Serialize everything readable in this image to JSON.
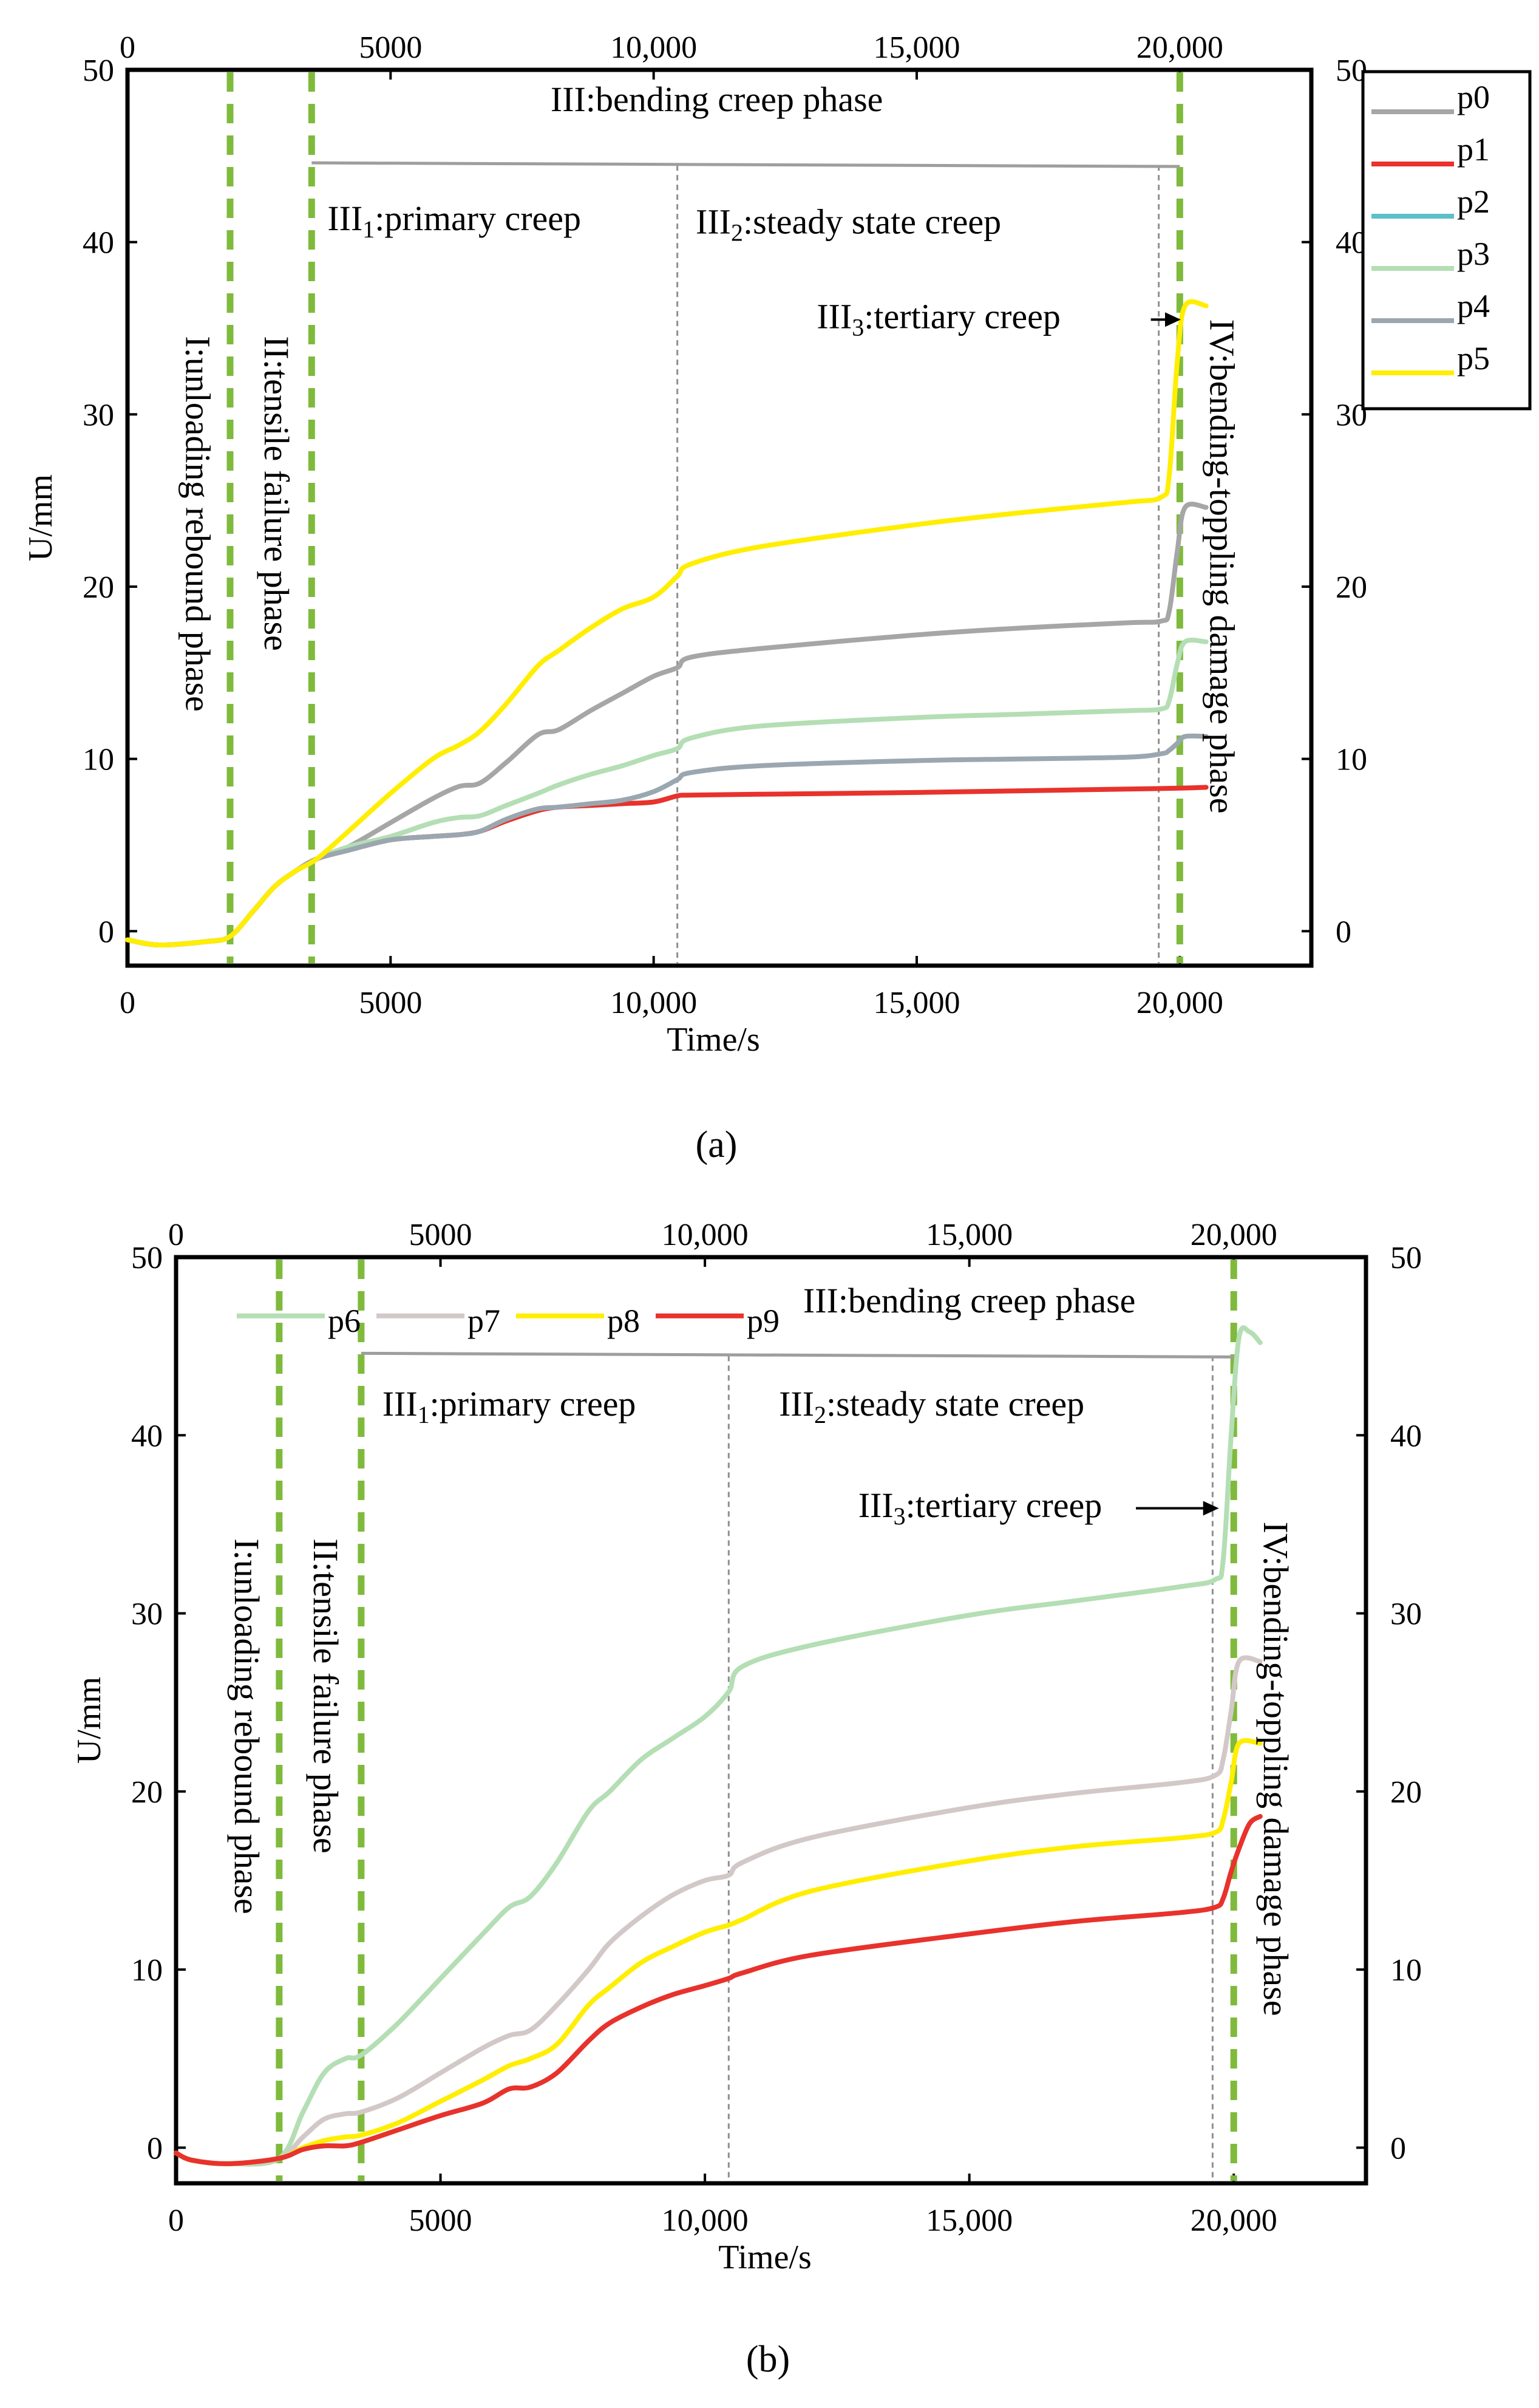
{
  "chart_data": [
    {
      "panel_label": "(a)",
      "type": "line",
      "xlabel": "Time/s",
      "ylabel": "U/mm",
      "xlim": [
        0,
        22500
      ],
      "ylim": [
        -2,
        50
      ],
      "x_ticks": [
        0,
        5000,
        10000,
        15000,
        20000
      ],
      "x_tick_labels": [
        "0",
        "5000",
        "10,000",
        "15,000",
        "20,000"
      ],
      "y_ticks": [
        0,
        10,
        20,
        30,
        40,
        50
      ],
      "y_tick_labels": [
        "0",
        "10",
        "20",
        "30",
        "40",
        "50"
      ],
      "legend_position": "right-outside",
      "legend_style": "box",
      "phase_boundaries": [
        1950,
        3500,
        20000
      ],
      "sub_boundaries": [
        10450,
        19600
      ],
      "bracket": {
        "y": 44.6,
        "x_start": 3500,
        "x_end": 20000
      },
      "phase_labels": {
        "phase_1": "I:unloading rebound phase",
        "phase_2": "II:tensile failure phase",
        "phase_3": "III:bending creep phase",
        "phase_4": "IV:bending-toppling damage phase"
      },
      "sub_labels": [
        {
          "prefix": "III",
          "sub": "1",
          "text": ":primary creep"
        },
        {
          "prefix": "III",
          "sub": "2",
          "text": ":steady state creep"
        },
        {
          "prefix": "III",
          "sub": "3",
          "text": ":tertiary creep"
        }
      ],
      "series": [
        {
          "name": "p0",
          "color": "#a6a6a6",
          "x": [
            0,
            600,
            1500,
            1950,
            2400,
            2800,
            3200,
            3600,
            4200,
            5000,
            5800,
            6300,
            6700,
            7200,
            7800,
            8200,
            8800,
            9400,
            10000,
            10450,
            10700,
            12000,
            15000,
            17000,
            19000,
            19650,
            19800,
            19950,
            20100,
            20500
          ],
          "y": [
            -0.5,
            -0.8,
            -0.6,
            -0.3,
            1.2,
            2.6,
            3.5,
            4.2,
            4.9,
            6.3,
            7.7,
            8.4,
            8.6,
            9.8,
            11.4,
            11.7,
            12.8,
            13.8,
            14.8,
            15.3,
            15.9,
            16.4,
            17.2,
            17.6,
            17.9,
            18.0,
            18.6,
            22.0,
            24.6,
            24.6
          ]
        },
        {
          "name": "p1",
          "color": "#e8322c",
          "x": [
            0,
            600,
            1500,
            1950,
            2400,
            2800,
            3200,
            3600,
            4200,
            5000,
            5800,
            6300,
            6700,
            7200,
            7800,
            8200,
            8800,
            9400,
            10000,
            10450,
            10700,
            12000,
            15000,
            17000,
            19000,
            20000,
            20500
          ],
          "y": [
            -0.5,
            -0.8,
            -0.6,
            -0.3,
            1.2,
            2.6,
            3.5,
            4.2,
            4.7,
            5.3,
            5.5,
            5.6,
            5.8,
            6.4,
            7.0,
            7.2,
            7.3,
            7.4,
            7.5,
            7.85,
            7.9,
            7.95,
            8.05,
            8.15,
            8.25,
            8.3,
            8.35
          ]
        },
        {
          "name": "p2",
          "color": "#5bc0c8",
          "x": [],
          "y": []
        },
        {
          "name": "p3",
          "color": "#b4deb4",
          "x": [
            0,
            600,
            1500,
            1950,
            2400,
            2800,
            3200,
            3600,
            4200,
            5000,
            5800,
            6300,
            6700,
            7200,
            7800,
            8200,
            8800,
            9400,
            10000,
            10450,
            10700,
            12000,
            15000,
            17000,
            19000,
            19650,
            19800,
            19950,
            20100,
            20500
          ],
          "y": [
            -0.5,
            -0.8,
            -0.6,
            -0.3,
            1.2,
            2.6,
            3.5,
            4.2,
            4.9,
            5.5,
            6.3,
            6.6,
            6.7,
            7.3,
            8.0,
            8.5,
            9.1,
            9.6,
            10.2,
            10.6,
            11.2,
            11.9,
            12.4,
            12.6,
            12.8,
            12.9,
            13.4,
            15.5,
            16.8,
            16.8
          ]
        },
        {
          "name": "p4",
          "color": "#9ba7b0",
          "x": [
            0,
            600,
            1500,
            1950,
            2400,
            2800,
            3200,
            3600,
            4200,
            5000,
            5800,
            6300,
            6700,
            7200,
            7800,
            8200,
            8800,
            9400,
            10000,
            10450,
            10700,
            12000,
            15000,
            17000,
            19000,
            19650,
            19800,
            19950,
            20100,
            20500
          ],
          "y": [
            -0.5,
            -0.8,
            -0.6,
            -0.3,
            1.2,
            2.6,
            3.5,
            4.2,
            4.7,
            5.3,
            5.5,
            5.6,
            5.8,
            6.5,
            7.1,
            7.2,
            7.4,
            7.6,
            8.1,
            8.8,
            9.2,
            9.6,
            9.9,
            10.0,
            10.1,
            10.3,
            10.5,
            10.9,
            11.3,
            11.3
          ]
        },
        {
          "name": "p5",
          "color": "#ffee00",
          "x": [
            0,
            600,
            1500,
            1950,
            2400,
            2800,
            3200,
            3600,
            4200,
            5000,
            5800,
            6300,
            6700,
            7200,
            7800,
            8200,
            8800,
            9400,
            10000,
            10450,
            10700,
            12000,
            15000,
            17000,
            19000,
            19650,
            19800,
            19950,
            20100,
            20500
          ],
          "y": [
            -0.5,
            -0.8,
            -0.6,
            -0.3,
            1.2,
            2.6,
            3.5,
            4.2,
            5.8,
            8.0,
            10.0,
            10.8,
            11.6,
            13.2,
            15.4,
            16.3,
            17.6,
            18.7,
            19.4,
            20.6,
            21.3,
            22.3,
            23.6,
            24.3,
            24.9,
            25.2,
            26.5,
            33.0,
            36.3,
            36.3
          ]
        }
      ]
    },
    {
      "panel_label": "(b)",
      "type": "line",
      "xlabel": "Time/s",
      "ylabel": "U/mm",
      "xlim": [
        0,
        22500
      ],
      "ylim": [
        -2,
        50
      ],
      "x_ticks": [
        0,
        5000,
        10000,
        15000,
        20000
      ],
      "x_tick_labels": [
        "0",
        "5000",
        "10,000",
        "15,000",
        "20,000"
      ],
      "y_ticks": [
        0,
        10,
        20,
        30,
        40,
        50
      ],
      "y_tick_labels": [
        "0",
        "10",
        "20",
        "30",
        "40",
        "50"
      ],
      "legend_position": "top-inline",
      "legend_style": "inline",
      "phase_boundaries": [
        1950,
        3500,
        20000
      ],
      "sub_boundaries": [
        10450,
        19600
      ],
      "bracket": {
        "y": 44.6,
        "x_start": 3500,
        "x_end": 20000
      },
      "phase_labels": {
        "phase_1": "I:unloading rebound phase",
        "phase_2": "II:tensile failure phase",
        "phase_3": "III:bending creep phase",
        "phase_4": "IV:bending-toppling damage phase"
      },
      "sub_labels": [
        {
          "prefix": "III",
          "sub": "1",
          "text": ":primary creep"
        },
        {
          "prefix": "III",
          "sub": "2",
          "text": ":steady state creep"
        },
        {
          "prefix": "III",
          "sub": "3",
          "text": ":tertiary creep"
        }
      ],
      "series": [
        {
          "name": "p6",
          "color": "#b4deb4",
          "x": [
            0,
            300,
            1000,
            1950,
            2400,
            2800,
            3200,
            3500,
            4200,
            5000,
            5800,
            6300,
            6700,
            7200,
            7800,
            8200,
            8800,
            9400,
            10000,
            10450,
            10700,
            12000,
            15000,
            17000,
            19000,
            19650,
            19800,
            19950,
            20100,
            20300,
            20500
          ],
          "y": [
            -0.3,
            -0.7,
            -0.9,
            -0.6,
            2.0,
            4.2,
            5.0,
            5.2,
            7.0,
            9.5,
            12.0,
            13.5,
            14.1,
            16.0,
            18.9,
            20.0,
            21.8,
            23.0,
            24.2,
            25.6,
            27.0,
            28.2,
            29.9,
            30.7,
            31.5,
            31.9,
            33.0,
            40.0,
            45.5,
            45.8,
            45.2
          ]
        },
        {
          "name": "p7",
          "color": "#d3c8c8",
          "x": [
            0,
            300,
            1000,
            1950,
            2400,
            2800,
            3200,
            3500,
            4200,
            5000,
            5800,
            6300,
            6700,
            7200,
            7800,
            8200,
            8800,
            9400,
            10000,
            10450,
            10700,
            12000,
            15000,
            17000,
            19000,
            19650,
            19800,
            19950,
            20100,
            20500
          ],
          "y": [
            -0.3,
            -0.7,
            -0.9,
            -0.6,
            0.6,
            1.6,
            1.9,
            2.0,
            2.8,
            4.2,
            5.6,
            6.3,
            6.6,
            8.0,
            10.0,
            11.5,
            13.0,
            14.2,
            15.0,
            15.3,
            16.0,
            17.4,
            19.1,
            19.9,
            20.5,
            20.9,
            21.8,
            24.5,
            27.3,
            27.3
          ]
        },
        {
          "name": "p8",
          "color": "#ffee00",
          "x": [
            0,
            300,
            1000,
            1950,
            2400,
            2800,
            3200,
            3500,
            4200,
            5000,
            5800,
            6300,
            6700,
            7200,
            7800,
            8200,
            8800,
            9400,
            10000,
            10450,
            10700,
            12000,
            15000,
            17000,
            19000,
            19650,
            19800,
            19950,
            20100,
            20500
          ],
          "y": [
            -0.3,
            -0.7,
            -0.9,
            -0.6,
            0.0,
            0.4,
            0.6,
            0.7,
            1.4,
            2.6,
            3.8,
            4.6,
            5.0,
            5.8,
            8.0,
            9.0,
            10.4,
            11.3,
            12.1,
            12.5,
            12.8,
            14.4,
            16.1,
            16.9,
            17.4,
            17.7,
            18.4,
            20.5,
            22.7,
            22.7
          ]
        },
        {
          "name": "p9",
          "color": "#e8322c",
          "x": [
            0,
            300,
            1000,
            1950,
            2400,
            2800,
            3200,
            3500,
            4200,
            5000,
            5800,
            6300,
            6700,
            7200,
            7800,
            8200,
            8800,
            9400,
            10000,
            10450,
            10700,
            12000,
            15000,
            17000,
            19000,
            19650,
            19800,
            19950,
            20100,
            20300,
            20500
          ],
          "y": [
            -0.3,
            -0.7,
            -0.9,
            -0.6,
            -0.1,
            0.1,
            0.1,
            0.3,
            1.0,
            1.8,
            2.5,
            3.3,
            3.4,
            4.2,
            6.0,
            7.0,
            7.9,
            8.6,
            9.1,
            9.5,
            9.8,
            10.8,
            12.0,
            12.7,
            13.2,
            13.5,
            14.0,
            15.5,
            16.8,
            18.2,
            18.6
          ]
        }
      ]
    }
  ]
}
